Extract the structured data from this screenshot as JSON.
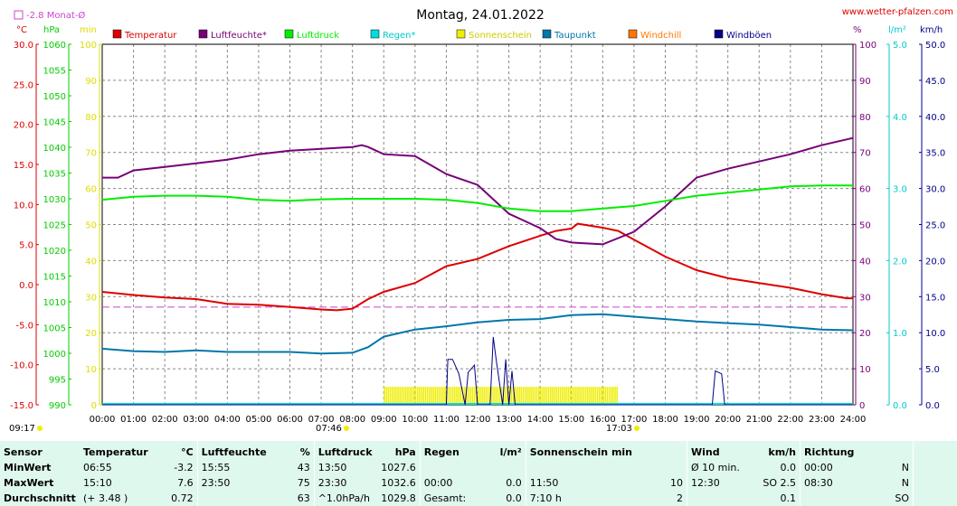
{
  "title": "Montag, 24.01.2022",
  "site": "www.wetter-pfalzen.com",
  "monat_label": "-2.8 Monat-Ø",
  "colors": {
    "temperatur": "#dd0000",
    "luftfeuchte": "#770077",
    "luftdruck": "#00ee00",
    "regen": "#00dddd",
    "sonnenschein": "#eeee00",
    "taupunkt": "#0077aa",
    "windchill": "#ff7700",
    "windboeen": "#000088",
    "monat": "#cc44cc"
  },
  "legend": [
    {
      "key": "temperatur",
      "label": "Temperatur"
    },
    {
      "key": "luftfeuchte",
      "label": "Luftfeuchte*"
    },
    {
      "key": "luftdruck",
      "label": "Luftdruck"
    },
    {
      "key": "regen",
      "label": "Regen*"
    },
    {
      "key": "sonnenschein",
      "label": "Sonnenschein"
    },
    {
      "key": "taupunkt",
      "label": "Taupunkt"
    },
    {
      "key": "windchill",
      "label": "Windchill"
    },
    {
      "key": "windboeen",
      "label": "Windböen"
    }
  ],
  "axis_units": {
    "temp": "°C",
    "pressure": "hPa",
    "minutes": "min",
    "humidity": "%",
    "rain": "l/m²",
    "wind": "km/h"
  },
  "sun_markers": {
    "sunrise": "07:46",
    "sunset": "17:03",
    "first": "09:17"
  },
  "chart_data": {
    "type": "line",
    "x_ticks": [
      "00:00",
      "01:00",
      "02:00",
      "03:00",
      "04:00",
      "05:00",
      "06:00",
      "07:00",
      "08:00",
      "09:00",
      "10:00",
      "11:00",
      "12:00",
      "13:00",
      "14:00",
      "15:00",
      "16:00",
      "17:00",
      "18:00",
      "19:00",
      "20:00",
      "21:00",
      "22:00",
      "23:00",
      "24:00"
    ],
    "x_range_hours": [
      0,
      24
    ],
    "axes": {
      "temperature_c": {
        "range": [
          -15,
          30
        ],
        "ticks": [
          "30.0",
          "25.0",
          "20.0",
          "15.0",
          "10.0",
          "5.0",
          "0.0",
          "-5.0",
          "-10.0",
          "-15.0"
        ]
      },
      "pressure_hpa": {
        "range": [
          990,
          1060
        ],
        "ticks": [
          "1060",
          "1055",
          "1050",
          "1045",
          "1040",
          "1035",
          "1030",
          "1025",
          "1020",
          "1015",
          "1010",
          "1005",
          "1000",
          "995",
          "990"
        ]
      },
      "sun_minutes": {
        "range": [
          0,
          100
        ],
        "ticks": [
          "100",
          "90",
          "80",
          "70",
          "60",
          "50",
          "40",
          "30",
          "20",
          "10",
          "0"
        ]
      },
      "humidity_pct": {
        "range": [
          0,
          100
        ],
        "ticks": [
          "100",
          "90",
          "80",
          "70",
          "60",
          "50",
          "40",
          "30",
          "20",
          "10",
          "0"
        ]
      },
      "rain_lm2": {
        "range": [
          0,
          5
        ],
        "ticks": [
          "5.0",
          "4.0",
          "3.0",
          "2.0",
          "1.0",
          "0.0"
        ]
      },
      "wind_kmh": {
        "range": [
          0,
          50
        ],
        "ticks": [
          "50.0",
          "45.0",
          "40.0",
          "35.0",
          "30.0",
          "25.0",
          "20.0",
          "15.0",
          "10.0",
          "5.0",
          "0.0"
        ]
      }
    },
    "monthly_avg_temp": -2.8,
    "series": [
      {
        "name": "Temperatur",
        "axis": "temperature_c",
        "points": [
          [
            0,
            -0.9
          ],
          [
            1,
            -1.3
          ],
          [
            2,
            -1.6
          ],
          [
            3,
            -1.8
          ],
          [
            4,
            -2.4
          ],
          [
            5,
            -2.5
          ],
          [
            6,
            -2.8
          ],
          [
            7,
            -3.1
          ],
          [
            7.5,
            -3.2
          ],
          [
            8,
            -3.0
          ],
          [
            8.5,
            -1.8
          ],
          [
            9,
            -0.9
          ],
          [
            10,
            0.2
          ],
          [
            11,
            2.3
          ],
          [
            12,
            3.2
          ],
          [
            13,
            4.8
          ],
          [
            14,
            6.1
          ],
          [
            14.5,
            6.7
          ],
          [
            15,
            7.0
          ],
          [
            15.2,
            7.6
          ],
          [
            16,
            7.1
          ],
          [
            16.5,
            6.7
          ],
          [
            17,
            5.6
          ],
          [
            18,
            3.5
          ],
          [
            19,
            1.8
          ],
          [
            20,
            0.8
          ],
          [
            21,
            0.2
          ],
          [
            22,
            -0.4
          ],
          [
            23,
            -1.2
          ],
          [
            23.8,
            -1.7
          ],
          [
            24,
            -1.7
          ]
        ]
      },
      {
        "name": "Luftfeuchte",
        "axis": "humidity_pct",
        "points": [
          [
            0,
            63
          ],
          [
            0.5,
            63
          ],
          [
            1,
            65
          ],
          [
            2,
            66
          ],
          [
            3,
            67
          ],
          [
            4,
            68
          ],
          [
            5,
            69.5
          ],
          [
            6,
            70.5
          ],
          [
            7,
            71
          ],
          [
            8,
            71.5
          ],
          [
            8.3,
            72
          ],
          [
            8.5,
            71.5
          ],
          [
            9,
            69.5
          ],
          [
            10,
            69
          ],
          [
            11,
            64
          ],
          [
            12,
            61
          ],
          [
            13,
            53
          ],
          [
            14,
            49
          ],
          [
            14.5,
            46
          ],
          [
            15,
            45
          ],
          [
            16,
            44.5
          ],
          [
            17,
            48
          ],
          [
            18,
            55
          ],
          [
            19,
            63
          ],
          [
            20,
            65.5
          ],
          [
            21,
            67.5
          ],
          [
            22,
            69.5
          ],
          [
            23,
            72
          ],
          [
            24,
            74
          ]
        ]
      },
      {
        "name": "Luftdruck",
        "axis": "pressure_hpa",
        "points": [
          [
            0,
            1029.8
          ],
          [
            1,
            1030.4
          ],
          [
            2,
            1030.6
          ],
          [
            3,
            1030.6
          ],
          [
            4,
            1030.4
          ],
          [
            5,
            1029.8
          ],
          [
            6,
            1029.6
          ],
          [
            7,
            1029.9
          ],
          [
            8,
            1030.0
          ],
          [
            9,
            1030.0
          ],
          [
            10,
            1030.0
          ],
          [
            11,
            1029.8
          ],
          [
            12,
            1029.2
          ],
          [
            13,
            1028.1
          ],
          [
            14,
            1027.6
          ],
          [
            15,
            1027.6
          ],
          [
            16,
            1028.1
          ],
          [
            17,
            1028.6
          ],
          [
            18,
            1029.6
          ],
          [
            19,
            1030.6
          ],
          [
            20,
            1031.2
          ],
          [
            21,
            1031.8
          ],
          [
            22,
            1032.4
          ],
          [
            23,
            1032.6
          ],
          [
            24,
            1032.6
          ]
        ]
      },
      {
        "name": "Taupunkt",
        "axis": "temperature_c",
        "points": [
          [
            0,
            -8.0
          ],
          [
            1,
            -8.3
          ],
          [
            2,
            -8.4
          ],
          [
            3,
            -8.2
          ],
          [
            4,
            -8.4
          ],
          [
            5,
            -8.4
          ],
          [
            6,
            -8.4
          ],
          [
            7,
            -8.6
          ],
          [
            8,
            -8.5
          ],
          [
            8.5,
            -7.8
          ],
          [
            9,
            -6.5
          ],
          [
            10,
            -5.6
          ],
          [
            11,
            -5.2
          ],
          [
            12,
            -4.7
          ],
          [
            13,
            -4.4
          ],
          [
            14,
            -4.3
          ],
          [
            15,
            -3.8
          ],
          [
            16,
            -3.7
          ],
          [
            17,
            -4.0
          ],
          [
            18,
            -4.3
          ],
          [
            19,
            -4.6
          ],
          [
            20,
            -4.8
          ],
          [
            21,
            -5.0
          ],
          [
            22,
            -5.3
          ],
          [
            23,
            -5.6
          ],
          [
            24,
            -5.7
          ]
        ]
      },
      {
        "name": "Windböen",
        "axis": "wind_kmh",
        "points": [
          [
            0,
            0
          ],
          [
            11,
            0
          ],
          [
            11.05,
            6.3
          ],
          [
            11.2,
            6.3
          ],
          [
            11.4,
            4.3
          ],
          [
            11.6,
            0
          ],
          [
            11.7,
            4.5
          ],
          [
            11.9,
            5.5
          ],
          [
            12.0,
            0
          ],
          [
            12.4,
            0
          ],
          [
            12.5,
            9.4
          ],
          [
            12.6,
            6
          ],
          [
            12.8,
            0
          ],
          [
            12.9,
            6.3
          ],
          [
            13.0,
            0
          ],
          [
            13.1,
            4.7
          ],
          [
            13.2,
            0
          ],
          [
            19.5,
            0
          ],
          [
            19.6,
            4.7
          ],
          [
            19.8,
            4.3
          ],
          [
            19.9,
            0
          ],
          [
            24,
            0
          ]
        ]
      }
    ],
    "sunshine_bars_minutes": [
      [
        9.0,
        5
      ],
      [
        9.5,
        5
      ],
      [
        10.0,
        5
      ],
      [
        10.5,
        5
      ],
      [
        11.0,
        5
      ],
      [
        11.5,
        5
      ],
      [
        12.0,
        5
      ],
      [
        12.5,
        5
      ],
      [
        13.0,
        5
      ],
      [
        13.5,
        5
      ],
      [
        14.0,
        5
      ],
      [
        14.5,
        5
      ],
      [
        15.0,
        5
      ],
      [
        15.5,
        5
      ],
      [
        16.0,
        5
      ]
    ],
    "wind_avg_zero": true
  },
  "stats": {
    "headers": {
      "sensor": "Sensor",
      "temperatur": "Temperatur",
      "temp_unit": "°C",
      "luftfeuchte": "Luftfeuchte",
      "hum_unit": "%",
      "luftdruck": "Luftdruck",
      "press_unit": "hPa",
      "regen": "Regen",
      "rain_unit": "l/m²",
      "sonnenschein": "Sonnenschein min",
      "wind": "Wind",
      "wind_unit": "km/h",
      "richtung": "Richtung"
    },
    "rows": [
      {
        "label": "MinWert",
        "temp_time": "06:55",
        "temp_val": "-3.2",
        "hum_time": "15:55",
        "hum_val": "43",
        "press_time": "13:50",
        "press_val": "1027.6",
        "rain_time": "",
        "rain_val": "",
        "sun_time": "",
        "sun_val": "",
        "wind_time": "Ø 10 min.",
        "wind_val": "0.0",
        "dir_time": "00:00",
        "dir_val": "N"
      },
      {
        "label": "MaxWert",
        "temp_time": "15:10",
        "temp_val": "7.6",
        "hum_time": "23:50",
        "hum_val": "75",
        "press_time": "23:30",
        "press_val": "1032.6",
        "rain_time": "00:00",
        "rain_val": "0.0",
        "sun_time": "11:50",
        "sun_val": "10",
        "wind_time": "12:30",
        "wind_val": "SO 2.5",
        "dir_time": "08:30",
        "dir_val": "N"
      },
      {
        "label": "Durchschnitt",
        "temp_time": "(+ 3.48 )",
        "temp_val": "0.72",
        "hum_time": "",
        "hum_val": "63",
        "press_time": "^1.0hPa/h",
        "press_val": "1029.8",
        "rain_time": "Gesamt:",
        "rain_val": "0.0",
        "sun_time": "7:10 h",
        "sun_val": "2",
        "wind_time": "",
        "wind_val": "0.1",
        "dir_time": "",
        "dir_val": "SO"
      }
    ]
  }
}
